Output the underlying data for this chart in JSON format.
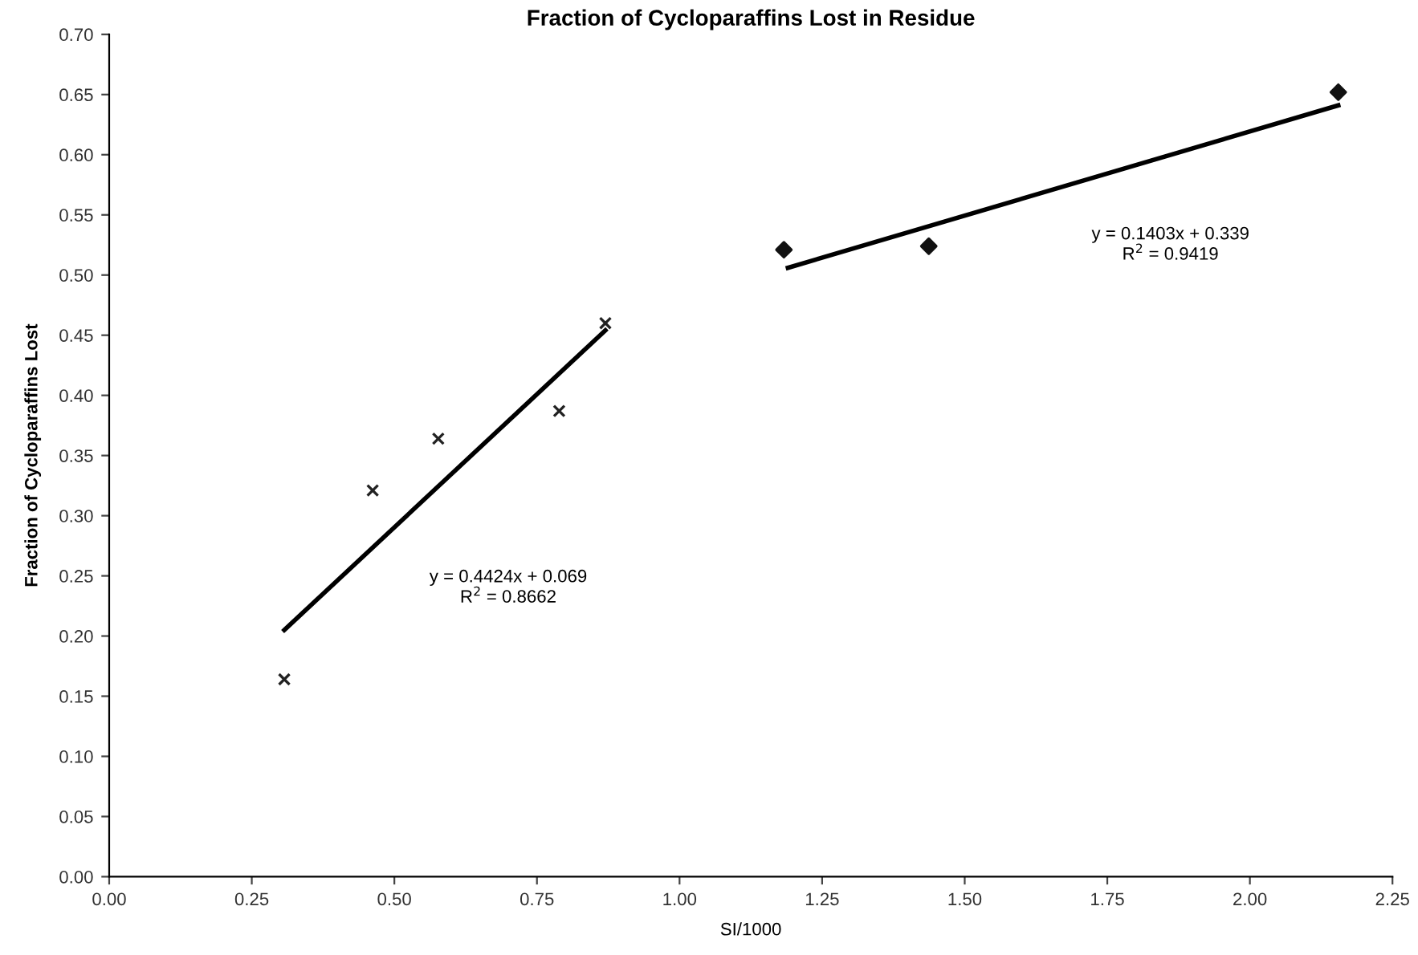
{
  "chart_data": {
    "type": "scatter",
    "title": "Fraction of Cycloparaffins Lost in Residue",
    "xlabel": "SI/1000",
    "ylabel": "Fraction of Cycloparaffins Lost",
    "series": [
      {
        "color": "#222222",
        "marker": "cross",
        "x": [
          0.307,
          0.462,
          0.577,
          0.789,
          0.87
        ],
        "values": [
          0.164,
          0.321,
          0.364,
          0.387,
          0.46
        ]
      },
      {
        "color": "#111111",
        "marker": "diamond",
        "x": [
          1.183,
          1.437,
          2.155
        ],
        "values": [
          0.521,
          0.524,
          0.652
        ]
      },
      {
        "type": "line",
        "color": "#000000",
        "line_style": "solid",
        "x": [
          0.307,
          0.87
        ],
        "values": [
          0.205,
          0.454
        ]
      },
      {
        "type": "line",
        "color": "#000000",
        "line_style": "solid",
        "x": [
          1.19,
          2.155
        ],
        "values": [
          0.506,
          0.641
        ]
      }
    ],
    "annotations": [
      "y = 0.4424x + 0.069\nR$^{2}$ = 0.8662",
      "y = 0.1403x + 0.339\nR$^{2}$ = 0.9419"
    ],
    "xlim": [
      0,
      2.25
    ],
    "xticks": [
      {
        "value": 0,
        "label": "0.00"
      },
      0.25,
      {
        "value": 0.5,
        "label": "0.50"
      },
      0.75,
      {
        "value": 1,
        "label": "1.00"
      },
      1.25,
      {
        "value": 1.5,
        "label": "1.50"
      },
      1.75,
      {
        "value": 2,
        "label": "2.00"
      },
      2.25
    ],
    "ylim": [
      0,
      0.7
    ],
    "yticks": [
      {
        "value": 0,
        "label": "0.00"
      },
      0.05,
      {
        "value": 0.1,
        "label": "0.10"
      },
      0.15,
      {
        "value": 0.2,
        "label": "0.20"
      },
      0.25,
      {
        "value": 0.3,
        "label": "0.30"
      },
      0.35,
      {
        "value": 0.4,
        "label": "0.40"
      },
      0.45,
      {
        "value": 0.5,
        "label": "0.50"
      },
      0.55,
      {
        "value": 0.6,
        "label": "0.60"
      },
      0.65,
      {
        "value": 0.7,
        "label": "0.70"
      }
    ],
    "grid": false,
    "legend": false
  }
}
